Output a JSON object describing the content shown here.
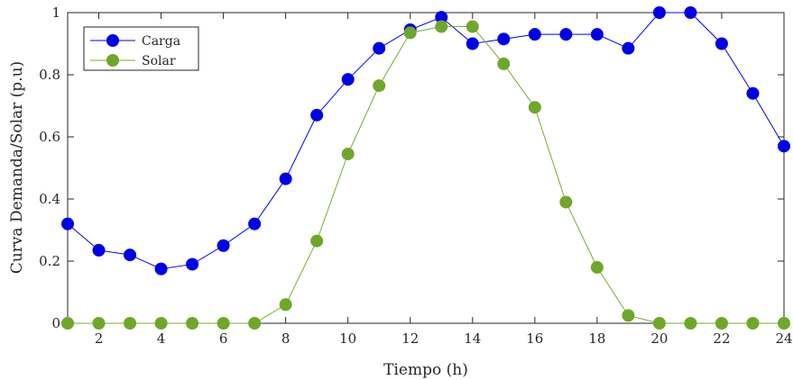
{
  "chart_data": {
    "type": "line",
    "title": "",
    "xlabel": "Tiempo (h)",
    "ylabel": "Curva Demanda/Solar (p.u)",
    "xlim": [
      1,
      24
    ],
    "ylim": [
      0,
      1
    ],
    "xticks": [
      2,
      4,
      6,
      8,
      10,
      12,
      14,
      16,
      18,
      20,
      22,
      24
    ],
    "xtick_labels": [
      "2",
      "4",
      "6",
      "8",
      "10",
      "12",
      "14",
      "16",
      "18",
      "20",
      "22",
      "24"
    ],
    "yticks": [
      0,
      0.2,
      0.4,
      0.6,
      0.8,
      1
    ],
    "ytick_labels": [
      "0",
      "0.2",
      "0.4",
      "0.6",
      "0.8",
      "1"
    ],
    "grid": false,
    "legend_position": "top-left",
    "x": [
      1,
      2,
      3,
      4,
      5,
      6,
      7,
      8,
      9,
      10,
      11,
      12,
      13,
      14,
      15,
      16,
      17,
      18,
      19,
      20,
      21,
      22,
      23,
      24
    ],
    "series": [
      {
        "name": "Carga",
        "color": "#0000ff",
        "marker_color": "#0000e6",
        "values": [
          0.32,
          0.235,
          0.22,
          0.175,
          0.19,
          0.25,
          0.32,
          0.465,
          0.67,
          0.785,
          0.885,
          0.945,
          0.985,
          0.9,
          0.915,
          0.93,
          0.93,
          0.93,
          0.885,
          1.0,
          1.0,
          0.9,
          0.74,
          0.57
        ]
      },
      {
        "name": "Solar",
        "color": "#77ac30",
        "marker_color": "#6fa72a",
        "values": [
          0,
          0,
          0,
          0,
          0,
          0,
          0,
          0.06,
          0.265,
          0.545,
          0.765,
          0.935,
          0.955,
          0.955,
          0.835,
          0.695,
          0.39,
          0.18,
          0.025,
          0,
          0,
          0,
          0,
          0
        ]
      }
    ]
  }
}
